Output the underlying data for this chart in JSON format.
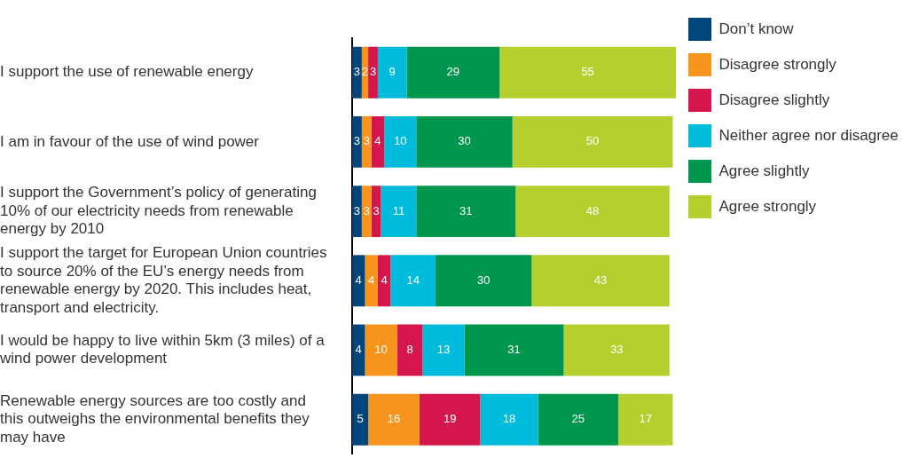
{
  "chart_data": {
    "type": "bar",
    "orientation": "horizontal",
    "stacked": true,
    "data_labels": true,
    "legend": "right",
    "grid": false,
    "tick_labels": "y",
    "xlim": [
      0,
      101
    ],
    "categories": [
      "I support the use of renewable energy",
      "I am in favour of the use of wind power",
      "I support the Government’s policy of generating 10% of our electricity needs from renewable energy by 2010",
      "I support the target for European Union countries to source 20% of the EU’s energy needs from renewable energy by 2020. This includes heat, transport and electricity.",
      "I would be happy to live within 5km (3 miles) of a wind power development",
      "Renewable energy sources are too costly and this outweighs the environmental benefits they may have"
    ],
    "series": [
      {
        "name": "Don’t know",
        "color": "#00457c",
        "values": [
          3,
          3,
          3,
          4,
          4,
          5
        ]
      },
      {
        "name": "Disagree strongly",
        "color": "#f7941e",
        "values": [
          2,
          3,
          3,
          4,
          10,
          16
        ]
      },
      {
        "name": "Disagree slightly",
        "color": "#d4164c",
        "values": [
          3,
          4,
          3,
          4,
          8,
          19
        ]
      },
      {
        "name": "Neither agree nor disagree",
        "color": "#00bcdc",
        "values": [
          9,
          10,
          11,
          14,
          13,
          18
        ]
      },
      {
        "name": "Agree slightly",
        "color": "#00964e",
        "values": [
          29,
          30,
          31,
          30,
          31,
          25
        ]
      },
      {
        "name": "Agree strongly",
        "color": "#b5cf2f",
        "values": [
          55,
          50,
          48,
          43,
          33,
          17
        ]
      }
    ]
  }
}
